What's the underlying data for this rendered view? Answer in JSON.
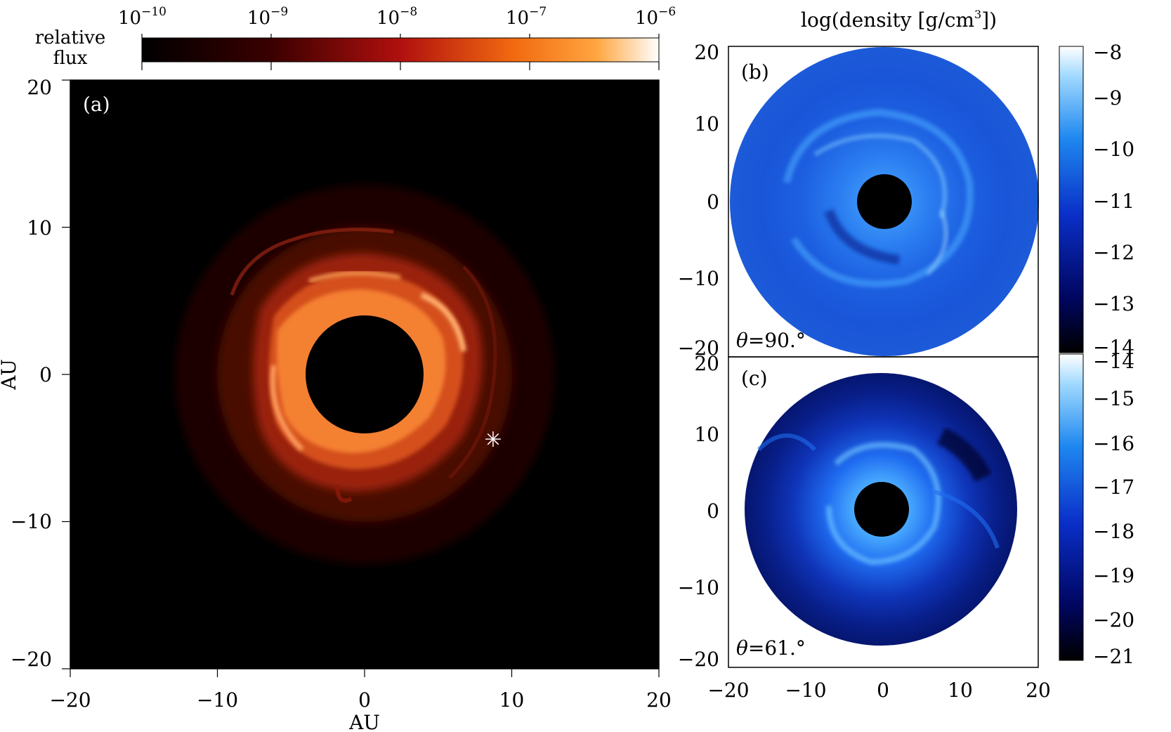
{
  "panel_a": {
    "label": "(a)",
    "colorbar_title_line1": "relative",
    "colorbar_title_line2": "flux",
    "colorbar_tick_base": "10",
    "colorbar_tick_exponents": [
      "−10",
      "−9",
      "−8",
      "−7",
      "−6"
    ],
    "x_ticks": [
      "−20",
      "−10",
      "0",
      "10",
      "20"
    ],
    "y_ticks": [
      "20",
      "10",
      "0",
      "−10",
      "−20"
    ],
    "xlabel": "AU",
    "ylabel": "AU",
    "marker": "✳",
    "colormap": [
      "#000000",
      "#3a0000",
      "#8a0a0a",
      "#c9241a",
      "#f55a10",
      "#ff9a20",
      "#ffd8a8",
      "#ffffff"
    ]
  },
  "panel_b": {
    "label": "(b)",
    "angle_theta": "θ",
    "angle_value": "=90.°",
    "x_ticks": [],
    "y_ticks": [
      "20",
      "10",
      "0",
      "−10",
      "−20"
    ]
  },
  "panel_c": {
    "label": "(c)",
    "angle_theta": "θ",
    "angle_value": "=61.°",
    "x_ticks": [
      "−20",
      "−10",
      "0",
      "10",
      "20"
    ],
    "y_ticks": [
      "20",
      "10",
      "0",
      "−10",
      "−20"
    ]
  },
  "density_colorbar": {
    "title_prefix": "log(density [g/cm",
    "title_superscript": "3",
    "title_suffix": "])",
    "upper_ticks": [
      "−8",
      "−9",
      "−10",
      "−11",
      "−12",
      "−13",
      "−14"
    ],
    "lower_ticks": [
      "−14",
      "−15",
      "−16",
      "−17",
      "−18",
      "−19",
      "−20",
      "−21"
    ],
    "colormap": [
      "#000000",
      "#000540",
      "#001a9a",
      "#0a45d8",
      "#1c86f0",
      "#6cc2ff",
      "#e8f6ff",
      "#ffffff"
    ]
  }
}
